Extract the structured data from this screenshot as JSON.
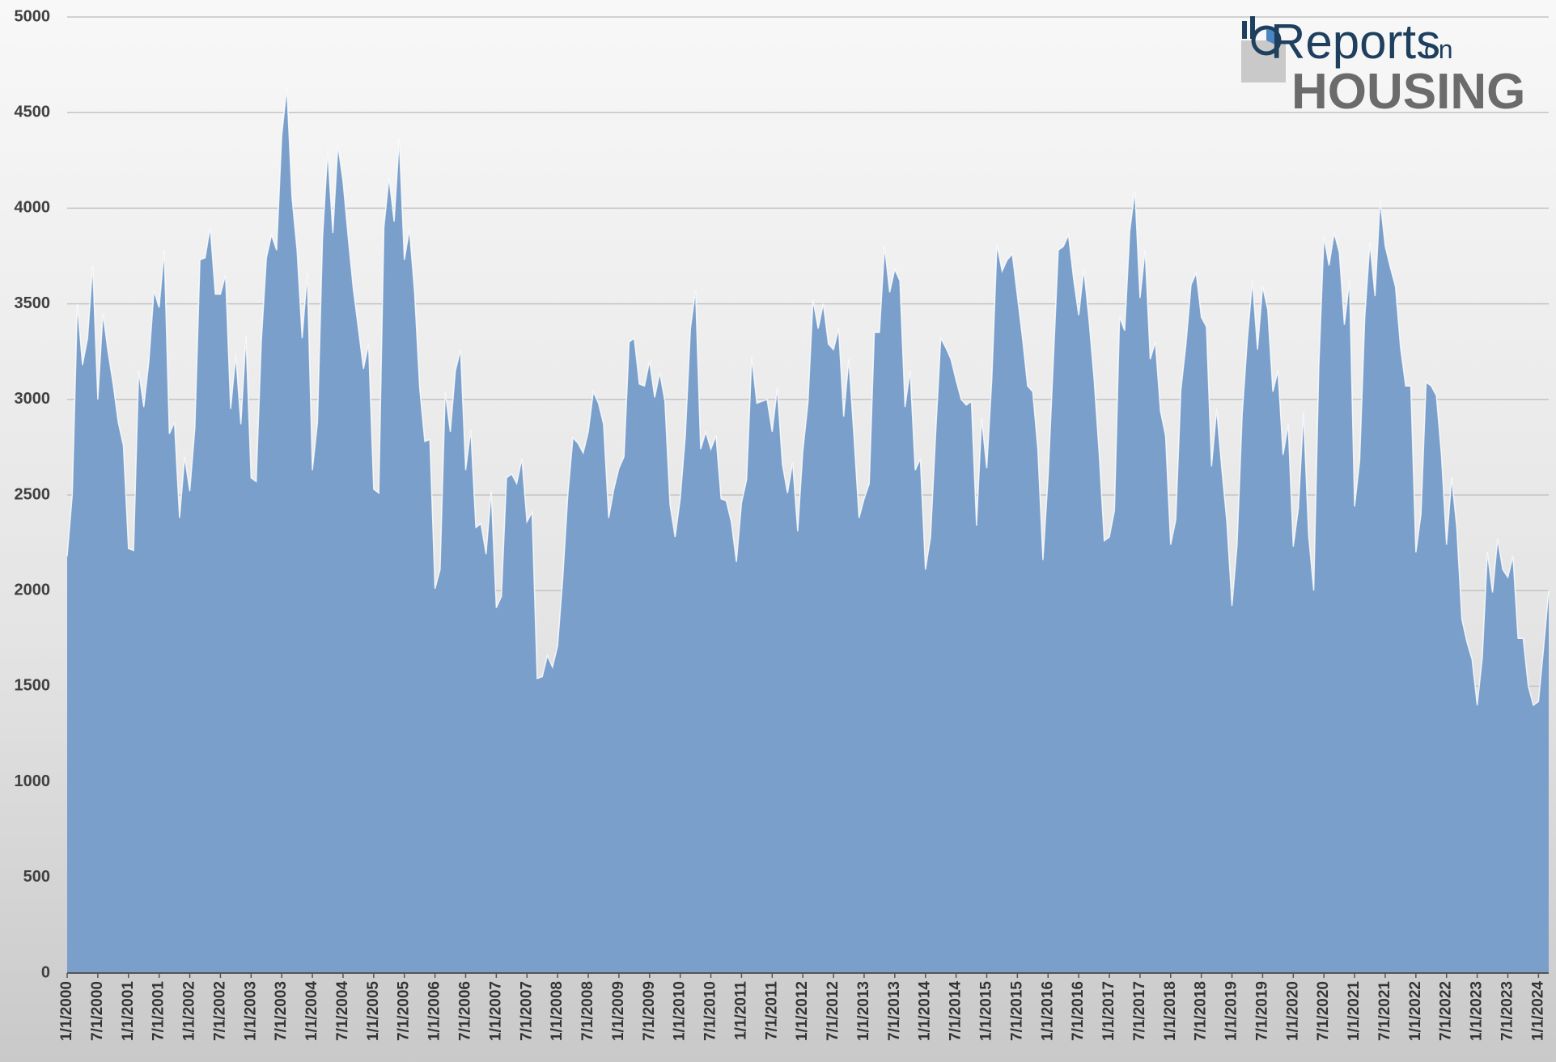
{
  "chart_data": {
    "type": "area",
    "color": "#7a9fcb",
    "grid": true,
    "logo": {
      "word": "Reports",
      "small": "on",
      "big": "HOUSING"
    },
    "ylim": [
      0,
      5000
    ],
    "yticks": [
      0,
      500,
      1000,
      1500,
      2000,
      2500,
      3000,
      3500,
      4000,
      4500,
      5000
    ],
    "categories": [
      "1/1/2000",
      null,
      null,
      null,
      null,
      null,
      "7/1/2000",
      null,
      null,
      null,
      null,
      null,
      "1/1/2001",
      null,
      null,
      null,
      null,
      null,
      "7/1/2001",
      null,
      null,
      null,
      null,
      null,
      "1/1/2002",
      null,
      null,
      null,
      null,
      null,
      "7/1/2002",
      null,
      null,
      null,
      null,
      null,
      "1/1/2003",
      null,
      null,
      null,
      null,
      null,
      "7/1/2003",
      null,
      null,
      null,
      null,
      null,
      "1/1/2004",
      null,
      null,
      null,
      null,
      null,
      "7/1/2004",
      null,
      null,
      null,
      null,
      null,
      "1/1/2005",
      null,
      null,
      null,
      null,
      null,
      "7/1/2005",
      null,
      null,
      null,
      null,
      null,
      "1/1/2006",
      null,
      null,
      null,
      null,
      null,
      "7/1/2006",
      null,
      null,
      null,
      null,
      null,
      "1/1/2007",
      null,
      null,
      null,
      null,
      null,
      "7/1/2007",
      null,
      null,
      null,
      null,
      null,
      "1/1/2008",
      null,
      null,
      null,
      null,
      null,
      "7/1/2008",
      null,
      null,
      null,
      null,
      null,
      "1/1/2009",
      null,
      null,
      null,
      null,
      null,
      "7/1/2009",
      null,
      null,
      null,
      null,
      null,
      "1/1/2010",
      null,
      null,
      null,
      null,
      null,
      "7/1/2010",
      null,
      null,
      null,
      null,
      null,
      "1/1/2011",
      null,
      null,
      null,
      null,
      null,
      "7/1/2011",
      null,
      null,
      null,
      null,
      null,
      "1/1/2012",
      null,
      null,
      null,
      null,
      null,
      "7/1/2012",
      null,
      null,
      null,
      null,
      null,
      "1/1/2013",
      null,
      null,
      null,
      null,
      null,
      "7/1/2013",
      null,
      null,
      null,
      null,
      null,
      "1/1/2014",
      null,
      null,
      null,
      null,
      null,
      "7/1/2014",
      null,
      null,
      null,
      null,
      null,
      "1/1/2015",
      null,
      null,
      null,
      null,
      null,
      "7/1/2015",
      null,
      null,
      null,
      null,
      null,
      "1/1/2016",
      null,
      null,
      null,
      null,
      null,
      "7/1/2016",
      null,
      null,
      null,
      null,
      null,
      "1/1/2017",
      null,
      null,
      null,
      null,
      null,
      "7/1/2017",
      null,
      null,
      null,
      null,
      null,
      "1/1/2018",
      null,
      null,
      null,
      null,
      null,
      "7/1/2018",
      null,
      null,
      null,
      null,
      null,
      "1/1/2019",
      null,
      null,
      null,
      null,
      null,
      "7/1/2019",
      null,
      null,
      null,
      null,
      null,
      "1/1/2020",
      null,
      null,
      null,
      null,
      null,
      "7/1/2020",
      null,
      null,
      null,
      null,
      null,
      "1/1/2021",
      null,
      null,
      null,
      null,
      null,
      "7/1/2021",
      null,
      null,
      null,
      null,
      null,
      "1/1/2022",
      null,
      null,
      null,
      null,
      null,
      "7/1/2022",
      null,
      null,
      null,
      null,
      null,
      "1/1/2023",
      null,
      null,
      null,
      null,
      null,
      "7/1/2023",
      null,
      null,
      null,
      null,
      null,
      "1/1/2024",
      null,
      null
    ],
    "values": [
      2180,
      2500,
      3500,
      3180,
      3320,
      3700,
      3000,
      3450,
      3250,
      3080,
      2880,
      2760,
      2220,
      2210,
      3150,
      2960,
      3200,
      3570,
      3480,
      3780,
      2820,
      2880,
      2380,
      2700,
      2520,
      2850,
      3730,
      3740,
      3900,
      3550,
      3550,
      3650,
      2950,
      3230,
      2870,
      3330,
      2590,
      2570,
      3300,
      3740,
      3860,
      3780,
      4380,
      4630,
      4060,
      3780,
      3320,
      3660,
      2630,
      2880,
      3850,
      4300,
      3870,
      4330,
      4140,
      3850,
      3580,
      3370,
      3160,
      3290,
      2530,
      2510,
      3900,
      4160,
      3930,
      4360,
      3730,
      3890,
      3560,
      3060,
      2780,
      2790,
      2010,
      2110,
      3040,
      2830,
      3150,
      3260,
      2630,
      2840,
      2330,
      2350,
      2190,
      2520,
      1910,
      1970,
      2590,
      2610,
      2560,
      2690,
      2360,
      2410,
      1540,
      1550,
      1660,
      1600,
      1710,
      2060,
      2500,
      2800,
      2770,
      2720,
      2830,
      3040,
      2980,
      2870,
      2380,
      2530,
      2640,
      2700,
      3300,
      3320,
      3080,
      3070,
      3200,
      3010,
      3140,
      2990,
      2450,
      2280,
      2480,
      2810,
      3370,
      3570,
      2740,
      2830,
      2740,
      2810,
      2480,
      2470,
      2360,
      2150,
      2460,
      2580,
      3220,
      2980,
      2990,
      3000,
      2830,
      3060,
      2660,
      2510,
      2670,
      2310,
      2730,
      2980,
      3520,
      3370,
      3500,
      3290,
      3260,
      3370,
      2910,
      3210,
      2810,
      2380,
      2480,
      2560,
      3350,
      3350,
      3800,
      3560,
      3680,
      3620,
      2960,
      3150,
      2630,
      2690,
      2110,
      2280,
      2820,
      3320,
      3270,
      3210,
      3100,
      3000,
      2970,
      2990,
      2340,
      2900,
      2640,
      3110,
      3810,
      3670,
      3730,
      3760,
      3540,
      3320,
      3070,
      3040,
      2740,
      2160,
      2590,
      3180,
      3780,
      3800,
      3860,
      3630,
      3440,
      3680,
      3420,
      3110,
      2720,
      2260,
      2280,
      2420,
      3430,
      3360,
      3880,
      4090,
      3530,
      3780,
      3210,
      3300,
      2940,
      2810,
      2240,
      2370,
      3050,
      3290,
      3600,
      3660,
      3430,
      3380,
      2650,
      2950,
      2640,
      2360,
      1920,
      2240,
      2920,
      3310,
      3620,
      3260,
      3590,
      3470,
      3040,
      3150,
      2710,
      2870,
      2230,
      2430,
      2930,
      2290,
      2000,
      3170,
      3850,
      3700,
      3870,
      3770,
      3390,
      3620,
      2440,
      2680,
      3430,
      3820,
      3540,
      4040,
      3800,
      3690,
      3590,
      3270,
      3070,
      3070,
      2200,
      2400,
      3090,
      3070,
      3020,
      2710,
      2240,
      2590,
      2330,
      1850,
      1730,
      1640,
      1400,
      1650,
      2200,
      1990,
      2270,
      2110,
      2070,
      2180,
      1750,
      1750,
      1500,
      1400,
      1420,
      1700,
      2000
    ]
  }
}
